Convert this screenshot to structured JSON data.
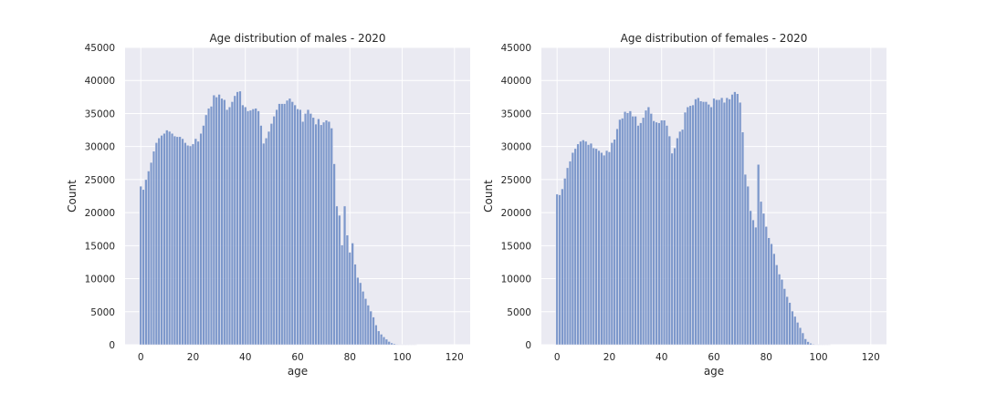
{
  "chart_data": [
    {
      "type": "bar",
      "title": "Age distribution of males - 2020",
      "xlabel": "age",
      "ylabel": "Count",
      "xlim": [
        -6,
        126
      ],
      "ylim": [
        0,
        45000
      ],
      "xticks": [
        0,
        20,
        40,
        60,
        80,
        100,
        120
      ],
      "yticks": [
        0,
        5000,
        10000,
        15000,
        20000,
        25000,
        30000,
        35000,
        40000,
        45000
      ],
      "grid": true,
      "bin_width": 1,
      "x": [
        0,
        1,
        2,
        3,
        4,
        5,
        6,
        7,
        8,
        9,
        10,
        11,
        12,
        13,
        14,
        15,
        16,
        17,
        18,
        19,
        20,
        21,
        22,
        23,
        24,
        25,
        26,
        27,
        28,
        29,
        30,
        31,
        32,
        33,
        34,
        35,
        36,
        37,
        38,
        39,
        40,
        41,
        42,
        43,
        44,
        45,
        46,
        47,
        48,
        49,
        50,
        51,
        52,
        53,
        54,
        55,
        56,
        57,
        58,
        59,
        60,
        61,
        62,
        63,
        64,
        65,
        66,
        67,
        68,
        69,
        70,
        71,
        72,
        73,
        74,
        75,
        76,
        77,
        78,
        79,
        80,
        81,
        82,
        83,
        84,
        85,
        86,
        87,
        88,
        89,
        90,
        91,
        92,
        93,
        94,
        95,
        96,
        97,
        98,
        99,
        100,
        101,
        102,
        103,
        104,
        105
      ],
      "values": [
        24000,
        23500,
        25000,
        26300,
        27600,
        29300,
        30600,
        31300,
        31700,
        32000,
        32500,
        32300,
        32000,
        31600,
        31500,
        31500,
        31200,
        30600,
        30200,
        30100,
        30400,
        31200,
        30800,
        32000,
        33200,
        34800,
        35800,
        36100,
        37800,
        37500,
        37900,
        37300,
        37100,
        35600,
        36000,
        36800,
        37700,
        38300,
        38400,
        36300,
        36000,
        35400,
        35500,
        35700,
        35800,
        35400,
        33200,
        30500,
        31300,
        32300,
        33500,
        34600,
        35600,
        36500,
        36500,
        36500,
        37000,
        37300,
        36800,
        36300,
        35700,
        35600,
        33800,
        35000,
        35600,
        35000,
        34400,
        33400,
        34200,
        33300,
        33700,
        34000,
        33800,
        32800,
        27400,
        21000,
        19600,
        15100,
        21000,
        16600,
        14000,
        15400,
        12200,
        10200,
        9400,
        8100,
        7000,
        6000,
        5100,
        4200,
        3000,
        2100,
        1600,
        1200,
        850,
        500,
        280,
        160,
        90,
        50,
        25,
        12,
        6,
        3,
        2,
        1
      ]
    },
    {
      "type": "bar",
      "title": "Age distribution of females - 2020",
      "xlabel": "age",
      "ylabel": "Count",
      "xlim": [
        -6,
        126
      ],
      "ylim": [
        0,
        45000
      ],
      "xticks": [
        0,
        20,
        40,
        60,
        80,
        100,
        120
      ],
      "yticks": [
        0,
        5000,
        10000,
        15000,
        20000,
        25000,
        30000,
        35000,
        40000,
        45000
      ],
      "grid": true,
      "bin_width": 1,
      "x": [
        0,
        1,
        2,
        3,
        4,
        5,
        6,
        7,
        8,
        9,
        10,
        11,
        12,
        13,
        14,
        15,
        16,
        17,
        18,
        19,
        20,
        21,
        22,
        23,
        24,
        25,
        26,
        27,
        28,
        29,
        30,
        31,
        32,
        33,
        34,
        35,
        36,
        37,
        38,
        39,
        40,
        41,
        42,
        43,
        44,
        45,
        46,
        47,
        48,
        49,
        50,
        51,
        52,
        53,
        54,
        55,
        56,
        57,
        58,
        59,
        60,
        61,
        62,
        63,
        64,
        65,
        66,
        67,
        68,
        69,
        70,
        71,
        72,
        73,
        74,
        75,
        76,
        77,
        78,
        79,
        80,
        81,
        82,
        83,
        84,
        85,
        86,
        87,
        88,
        89,
        90,
        91,
        92,
        93,
        94,
        95,
        96,
        97,
        98,
        99,
        100,
        101,
        102,
        103,
        104,
        105
      ],
      "values": [
        22800,
        22700,
        23600,
        25200,
        26800,
        27800,
        29100,
        29700,
        30400,
        30800,
        31000,
        30800,
        30300,
        30500,
        29800,
        29700,
        29400,
        29100,
        28700,
        29400,
        29200,
        30600,
        31100,
        32700,
        34100,
        34300,
        35300,
        35100,
        35400,
        34600,
        34600,
        33200,
        33600,
        34400,
        35500,
        36000,
        35000,
        33900,
        33700,
        33600,
        34000,
        34000,
        33200,
        31600,
        29000,
        29800,
        31300,
        32300,
        32600,
        35200,
        36000,
        36200,
        36300,
        37200,
        37400,
        36900,
        36800,
        36800,
        36400,
        36000,
        37300,
        37100,
        37100,
        37400,
        36700,
        37400,
        37200,
        37900,
        38300,
        38000,
        36700,
        32200,
        25800,
        24000,
        20300,
        18900,
        17800,
        27300,
        21700,
        19900,
        17900,
        16200,
        15300,
        13800,
        12100,
        10700,
        9900,
        8500,
        7300,
        6400,
        5100,
        4300,
        3400,
        2600,
        1800,
        900,
        480,
        240,
        110,
        50,
        20,
        8,
        4,
        2,
        1,
        0
      ]
    }
  ]
}
